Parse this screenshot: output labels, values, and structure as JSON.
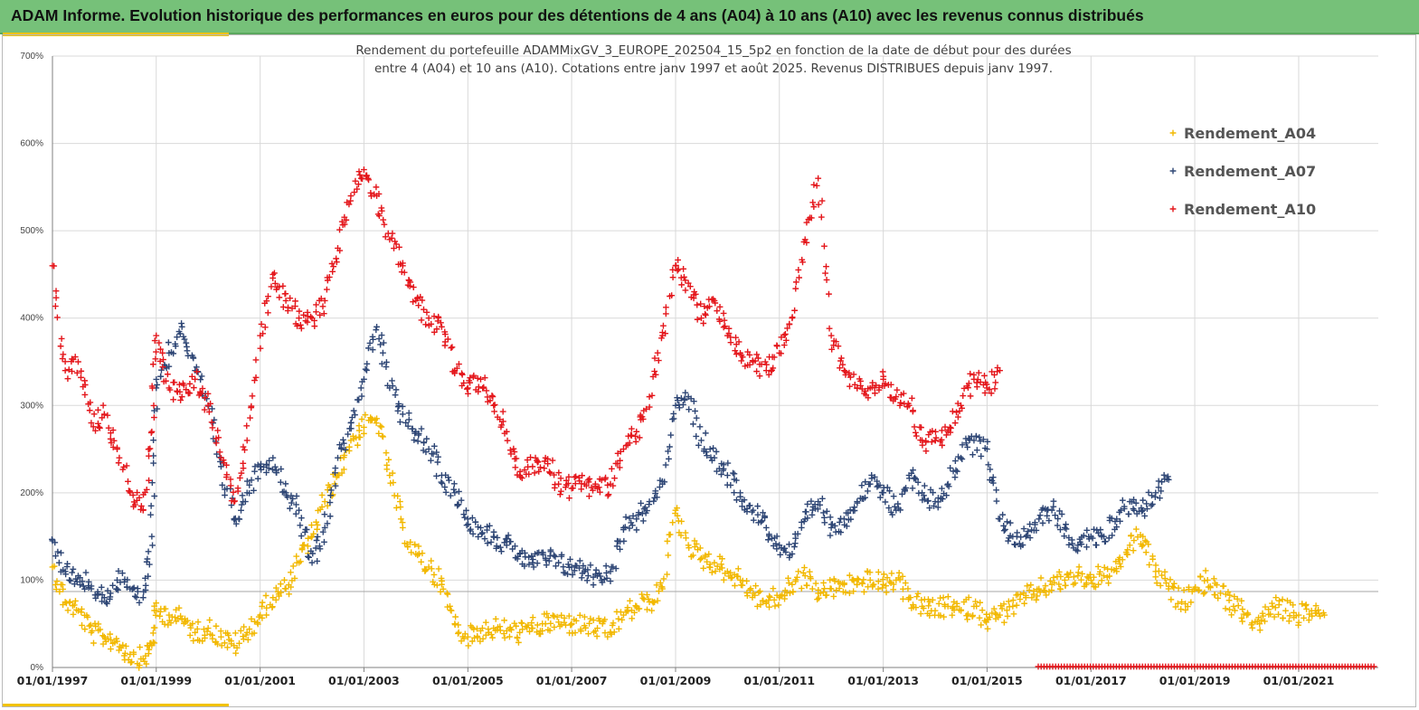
{
  "header": {
    "banner_title": "ADAM Informe. Evolution historique des performances en euros pour des détentions de 4 ans (A04) à 10 ans (A10) avec les revenus connus distribués",
    "banner_color": "#76c179"
  },
  "chart_data": {
    "type": "scatter",
    "title_line1": "Rendement du portefeuille ADAMMixGV_3_EUROPE_202504_15_5p2  en fonction de la date de début pour des durées",
    "title_line2": "entre 4 (A04) et 10 ans (A10). Cotations entre janv 1997 et août 2025. Revenus DISTRIBUES depuis janv 1997.",
    "xlabel": "",
    "ylabel": "",
    "y_unit": "%",
    "ylim": [
      0,
      700
    ],
    "yticks": [
      "0%",
      "100%",
      "200%",
      "300%",
      "400%",
      "500%",
      "600%",
      "700%"
    ],
    "xlim": [
      "1997-01-01",
      "2022-07-15"
    ],
    "xticks": [
      "01/01/1997",
      "01/01/1999",
      "01/01/2001",
      "01/01/2003",
      "01/01/2005",
      "01/01/2007",
      "01/01/2009",
      "01/01/2011",
      "01/01/2013",
      "01/01/2015",
      "01/01/2017",
      "01/01/2019",
      "01/01/2021"
    ],
    "grid": true,
    "reference_line": 87,
    "legend_position": "top-right",
    "marker": "+",
    "series": [
      {
        "name": "Rendement_A04",
        "color": "#f2b800",
        "points": [
          [
            "1997-01-01",
            115
          ],
          [
            "1997-04-01",
            75
          ],
          [
            "1997-07-01",
            65
          ],
          [
            "1997-10-01",
            40
          ],
          [
            "1998-01-01",
            35
          ],
          [
            "1998-04-01",
            30
          ],
          [
            "1998-07-01",
            15
          ],
          [
            "1998-10-01",
            10
          ],
          [
            "1998-12-01",
            25
          ],
          [
            "1999-01-01",
            65
          ],
          [
            "1999-04-01",
            60
          ],
          [
            "1999-07-01",
            55
          ],
          [
            "1999-10-01",
            40
          ],
          [
            "2000-01-01",
            45
          ],
          [
            "2000-04-01",
            35
          ],
          [
            "2000-07-01",
            25
          ],
          [
            "2000-10-01",
            40
          ],
          [
            "2001-01-01",
            60
          ],
          [
            "2001-04-01",
            80
          ],
          [
            "2001-07-01",
            90
          ],
          [
            "2001-10-01",
            120
          ],
          [
            "2002-01-01",
            150
          ],
          [
            "2002-04-01",
            190
          ],
          [
            "2002-07-01",
            220
          ],
          [
            "2002-10-01",
            260
          ],
          [
            "2003-01-01",
            275
          ],
          [
            "2003-04-01",
            285
          ],
          [
            "2003-07-01",
            220
          ],
          [
            "2003-10-01",
            160
          ],
          [
            "2004-01-01",
            130
          ],
          [
            "2004-04-01",
            115
          ],
          [
            "2004-07-01",
            95
          ],
          [
            "2004-10-01",
            50
          ],
          [
            "2005-01-01",
            35
          ],
          [
            "2005-04-01",
            42
          ],
          [
            "2005-07-01",
            45
          ],
          [
            "2005-10-01",
            42
          ],
          [
            "2006-01-01",
            40
          ],
          [
            "2006-04-01",
            45
          ],
          [
            "2006-07-01",
            50
          ],
          [
            "2006-10-01",
            52
          ],
          [
            "2007-01-01",
            50
          ],
          [
            "2007-04-01",
            48
          ],
          [
            "2007-07-01",
            45
          ],
          [
            "2007-10-01",
            40
          ],
          [
            "2008-01-01",
            60
          ],
          [
            "2008-04-01",
            70
          ],
          [
            "2008-07-01",
            75
          ],
          [
            "2008-10-01",
            90
          ],
          [
            "2009-01-01",
            180
          ],
          [
            "2009-04-01",
            140
          ],
          [
            "2009-07-01",
            125
          ],
          [
            "2009-10-01",
            120
          ],
          [
            "2010-01-01",
            110
          ],
          [
            "2010-04-01",
            100
          ],
          [
            "2010-07-01",
            85
          ],
          [
            "2010-10-01",
            75
          ],
          [
            "2011-01-01",
            80
          ],
          [
            "2011-04-01",
            95
          ],
          [
            "2011-07-01",
            105
          ],
          [
            "2011-10-01",
            85
          ],
          [
            "2012-01-01",
            90
          ],
          [
            "2012-04-01",
            95
          ],
          [
            "2012-07-01",
            95
          ],
          [
            "2012-10-01",
            100
          ],
          [
            "2013-01-01",
            95
          ],
          [
            "2013-04-01",
            100
          ],
          [
            "2013-07-01",
            80
          ],
          [
            "2013-10-01",
            70
          ],
          [
            "2014-01-01",
            65
          ],
          [
            "2014-04-01",
            70
          ],
          [
            "2014-07-01",
            65
          ],
          [
            "2014-10-01",
            70
          ],
          [
            "2015-01-01",
            55
          ],
          [
            "2015-04-01",
            60
          ],
          [
            "2015-07-01",
            70
          ],
          [
            "2015-10-01",
            80
          ],
          [
            "2016-01-01",
            90
          ],
          [
            "2016-04-01",
            95
          ],
          [
            "2016-07-01",
            100
          ],
          [
            "2016-10-01",
            105
          ],
          [
            "2017-01-01",
            100
          ],
          [
            "2017-04-01",
            105
          ],
          [
            "2017-07-01",
            110
          ],
          [
            "2017-10-01",
            140
          ],
          [
            "2018-01-01",
            150
          ],
          [
            "2018-04-01",
            110
          ],
          [
            "2018-07-01",
            90
          ],
          [
            "2018-10-01",
            75
          ],
          [
            "2019-01-01",
            90
          ],
          [
            "2019-04-01",
            100
          ],
          [
            "2019-07-01",
            85
          ],
          [
            "2019-10-01",
            70
          ],
          [
            "2020-01-01",
            60
          ],
          [
            "2020-04-01",
            50
          ],
          [
            "2020-07-01",
            70
          ],
          [
            "2020-10-01",
            65
          ],
          [
            "2021-01-01",
            60
          ],
          [
            "2021-04-01",
            65
          ],
          [
            "2021-07-01",
            60
          ]
        ]
      },
      {
        "name": "Rendement_A07",
        "color": "#2e4675",
        "points": [
          [
            "1997-01-01",
            145
          ],
          [
            "1997-04-01",
            110
          ],
          [
            "1997-07-01",
            105
          ],
          [
            "1997-10-01",
            90
          ],
          [
            "1998-01-01",
            80
          ],
          [
            "1998-04-01",
            100
          ],
          [
            "1998-07-01",
            90
          ],
          [
            "1998-10-01",
            80
          ],
          [
            "1998-12-01",
            150
          ],
          [
            "1999-01-01",
            320
          ],
          [
            "1999-04-01",
            360
          ],
          [
            "1999-07-01",
            390
          ],
          [
            "1999-10-01",
            340
          ],
          [
            "2000-01-01",
            300
          ],
          [
            "2000-04-01",
            230
          ],
          [
            "2000-07-01",
            170
          ],
          [
            "2000-10-01",
            200
          ],
          [
            "2001-01-01",
            230
          ],
          [
            "2001-04-01",
            240
          ],
          [
            "2001-07-01",
            200
          ],
          [
            "2001-10-01",
            180
          ],
          [
            "2002-01-01",
            120
          ],
          [
            "2002-04-01",
            160
          ],
          [
            "2002-07-01",
            240
          ],
          [
            "2002-10-01",
            280
          ],
          [
            "2003-01-01",
            330
          ],
          [
            "2003-04-01",
            390
          ],
          [
            "2003-07-01",
            320
          ],
          [
            "2003-10-01",
            290
          ],
          [
            "2004-01-01",
            270
          ],
          [
            "2004-04-01",
            250
          ],
          [
            "2004-07-01",
            220
          ],
          [
            "2004-10-01",
            200
          ],
          [
            "2005-01-01",
            170
          ],
          [
            "2005-04-01",
            160
          ],
          [
            "2005-07-01",
            150
          ],
          [
            "2005-10-01",
            140
          ],
          [
            "2006-01-01",
            130
          ],
          [
            "2006-04-01",
            120
          ],
          [
            "2006-07-01",
            125
          ],
          [
            "2006-10-01",
            120
          ],
          [
            "2007-01-01",
            115
          ],
          [
            "2007-04-01",
            110
          ],
          [
            "2007-07-01",
            105
          ],
          [
            "2007-10-01",
            110
          ],
          [
            "2008-01-01",
            160
          ],
          [
            "2008-04-01",
            170
          ],
          [
            "2008-07-01",
            190
          ],
          [
            "2008-10-01",
            210
          ],
          [
            "2009-01-01",
            300
          ],
          [
            "2009-04-01",
            310
          ],
          [
            "2009-07-01",
            260
          ],
          [
            "2009-10-01",
            240
          ],
          [
            "2010-01-01",
            220
          ],
          [
            "2010-04-01",
            200
          ],
          [
            "2010-07-01",
            180
          ],
          [
            "2010-10-01",
            160
          ],
          [
            "2011-01-01",
            140
          ],
          [
            "2011-04-01",
            130
          ],
          [
            "2011-07-01",
            170
          ],
          [
            "2011-10-01",
            190
          ],
          [
            "2012-01-01",
            160
          ],
          [
            "2012-04-01",
            170
          ],
          [
            "2012-07-01",
            190
          ],
          [
            "2012-10-01",
            210
          ],
          [
            "2013-01-01",
            200
          ],
          [
            "2013-04-01",
            180
          ],
          [
            "2013-07-01",
            220
          ],
          [
            "2013-10-01",
            200
          ],
          [
            "2014-01-01",
            190
          ],
          [
            "2014-04-01",
            210
          ],
          [
            "2014-07-01",
            240
          ],
          [
            "2014-10-01",
            260
          ],
          [
            "2015-01-01",
            250
          ],
          [
            "2015-04-01",
            170
          ],
          [
            "2015-07-01",
            150
          ],
          [
            "2015-10-01",
            150
          ],
          [
            "2016-01-01",
            170
          ],
          [
            "2016-04-01",
            180
          ],
          [
            "2016-07-01",
            160
          ],
          [
            "2016-10-01",
            140
          ],
          [
            "2017-01-01",
            150
          ],
          [
            "2017-04-01",
            150
          ],
          [
            "2017-07-01",
            170
          ],
          [
            "2017-10-01",
            190
          ],
          [
            "2018-01-01",
            180
          ],
          [
            "2018-04-01",
            200
          ],
          [
            "2018-07-01",
            215
          ]
        ]
      },
      {
        "name": "Rendement_A10",
        "color": "#e4161b",
        "points": [
          [
            "1997-01-01",
            460
          ],
          [
            "1997-04-01",
            340
          ],
          [
            "1997-07-01",
            350
          ],
          [
            "1997-10-01",
            280
          ],
          [
            "1998-01-01",
            290
          ],
          [
            "1998-04-01",
            250
          ],
          [
            "1998-07-01",
            200
          ],
          [
            "1998-10-01",
            180
          ],
          [
            "1998-12-01",
            270
          ],
          [
            "1999-01-01",
            380
          ],
          [
            "1999-04-01",
            320
          ],
          [
            "1999-07-01",
            310
          ],
          [
            "1999-10-01",
            330
          ],
          [
            "2000-01-01",
            300
          ],
          [
            "2000-04-01",
            240
          ],
          [
            "2000-07-01",
            190
          ],
          [
            "2000-10-01",
            260
          ],
          [
            "2001-01-01",
            380
          ],
          [
            "2001-04-01",
            450
          ],
          [
            "2001-07-01",
            420
          ],
          [
            "2001-10-01",
            400
          ],
          [
            "2002-01-01",
            400
          ],
          [
            "2002-04-01",
            420
          ],
          [
            "2002-07-01",
            480
          ],
          [
            "2002-10-01",
            540
          ],
          [
            "2003-01-01",
            570
          ],
          [
            "2003-04-01",
            540
          ],
          [
            "2003-07-01",
            490
          ],
          [
            "2003-10-01",
            460
          ],
          [
            "2004-01-01",
            420
          ],
          [
            "2004-04-01",
            400
          ],
          [
            "2004-07-01",
            390
          ],
          [
            "2004-10-01",
            340
          ],
          [
            "2005-01-01",
            320
          ],
          [
            "2005-04-01",
            330
          ],
          [
            "2005-07-01",
            300
          ],
          [
            "2005-10-01",
            270
          ],
          [
            "2006-01-01",
            220
          ],
          [
            "2006-04-01",
            230
          ],
          [
            "2006-07-01",
            240
          ],
          [
            "2006-10-01",
            210
          ],
          [
            "2007-01-01",
            205
          ],
          [
            "2007-04-01",
            210
          ],
          [
            "2007-07-01",
            205
          ],
          [
            "2007-10-01",
            210
          ],
          [
            "2008-01-01",
            250
          ],
          [
            "2008-04-01",
            270
          ],
          [
            "2008-07-01",
            310
          ],
          [
            "2008-10-01",
            380
          ],
          [
            "2009-01-01",
            460
          ],
          [
            "2009-04-01",
            440
          ],
          [
            "2009-07-01",
            400
          ],
          [
            "2009-10-01",
            420
          ],
          [
            "2010-01-01",
            380
          ],
          [
            "2010-04-01",
            360
          ],
          [
            "2010-07-01",
            350
          ],
          [
            "2010-10-01",
            340
          ],
          [
            "2011-01-01",
            360
          ],
          [
            "2011-04-01",
            400
          ],
          [
            "2011-07-01",
            490
          ],
          [
            "2011-10-01",
            560
          ],
          [
            "2012-01-01",
            380
          ],
          [
            "2012-04-01",
            340
          ],
          [
            "2012-07-01",
            320
          ],
          [
            "2012-10-01",
            320
          ],
          [
            "2013-01-01",
            330
          ],
          [
            "2013-04-01",
            310
          ],
          [
            "2013-07-01",
            300
          ],
          [
            "2013-10-01",
            260
          ],
          [
            "2014-01-01",
            260
          ],
          [
            "2014-04-01",
            270
          ],
          [
            "2014-07-01",
            300
          ],
          [
            "2014-10-01",
            330
          ],
          [
            "2015-01-01",
            320
          ],
          [
            "2015-04-01",
            340
          ]
        ]
      }
    ]
  }
}
